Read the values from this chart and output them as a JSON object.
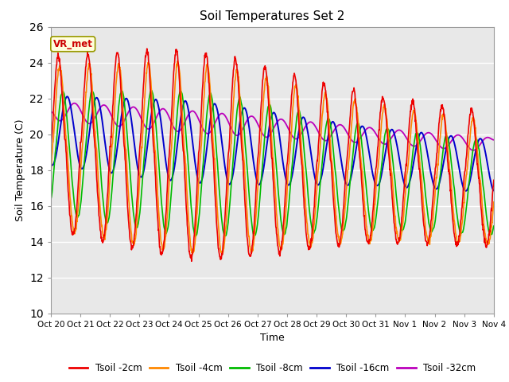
{
  "title": "Soil Temperatures Set 2",
  "xlabel": "Time",
  "ylabel": "Soil Temperature (C)",
  "ylim": [
    10,
    26
  ],
  "yticks": [
    10,
    12,
    14,
    16,
    18,
    20,
    22,
    24,
    26
  ],
  "bg_color": "#e8e8e8",
  "fig_color": "#ffffff",
  "annotation_text": "VR_met",
  "annotation_color": "#cc0000",
  "annotation_bg": "#ffffdd",
  "series_colors": {
    "Tsoil -2cm": "#ee0000",
    "Tsoil -4cm": "#ff8800",
    "Tsoil -8cm": "#00bb00",
    "Tsoil -16cm": "#0000cc",
    "Tsoil -32cm": "#bb00bb"
  },
  "xtick_labels": [
    "Oct 20",
    "Oct 21",
    "Oct 22",
    "Oct 23",
    "Oct 24",
    "Oct 25",
    "Oct 26",
    "Oct 27",
    "Oct 28",
    "Oct 29",
    "Oct 30",
    "Oct 31",
    "Nov 1",
    "Nov 2",
    "Nov 3",
    "Nov 4"
  ],
  "num_points": 1440
}
